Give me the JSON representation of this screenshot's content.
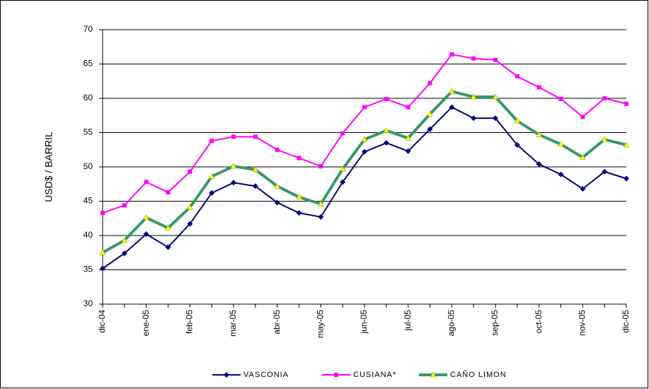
{
  "chart_data": {
    "type": "line",
    "ylabel": "USD$ / BARRIL",
    "categories": [
      "dic-04",
      null,
      "ene-05",
      null,
      "feb-05",
      null,
      "mar-05",
      null,
      "abr-05",
      null,
      "may-05",
      null,
      "jun-05",
      null,
      "jul-05",
      null,
      "ago-05",
      null,
      "sep-05",
      null,
      "oct-05",
      null,
      "nov-05",
      null,
      "dic-05"
    ],
    "series": [
      {
        "name": "VASCONIA",
        "color": "#000080",
        "marker": "diamond",
        "values": [
          35.2,
          37.4,
          40.2,
          38.3,
          41.7,
          46.2,
          47.7,
          47.2,
          44.8,
          43.3,
          42.7,
          47.8,
          52.2,
          53.5,
          52.3,
          55.5,
          58.7,
          57.1,
          57.1,
          53.2,
          50.4,
          48.9,
          46.8,
          49.3,
          48.3
        ]
      },
      {
        "name": "CUSIANA*",
        "color": "#ff00ff",
        "marker": "square",
        "values": [
          43.3,
          44.4,
          47.8,
          46.3,
          49.3,
          53.8,
          54.4,
          54.4,
          52.5,
          51.3,
          50.1,
          54.9,
          58.7,
          59.9,
          58.7,
          62.2,
          66.4,
          65.8,
          65.6,
          63.2,
          61.6,
          59.9,
          57.3,
          60.0,
          59.2
        ]
      },
      {
        "name": "CAÑO LIMON",
        "color": "#339966",
        "marker": "triangle",
        "values": [
          37.5,
          39.3,
          42.6,
          41.1,
          44.1,
          48.6,
          50.1,
          49.6,
          47.2,
          45.6,
          44.6,
          49.7,
          54.0,
          55.3,
          54.2,
          57.7,
          61.0,
          60.2,
          60.2,
          56.7,
          54.7,
          53.3,
          51.4,
          54.0,
          53.2
        ]
      }
    ],
    "ylim": [
      30,
      70
    ],
    "yticks": [
      30,
      35,
      40,
      45,
      50,
      55,
      60,
      65,
      70
    ],
    "grid": true,
    "legend": "bottom"
  }
}
